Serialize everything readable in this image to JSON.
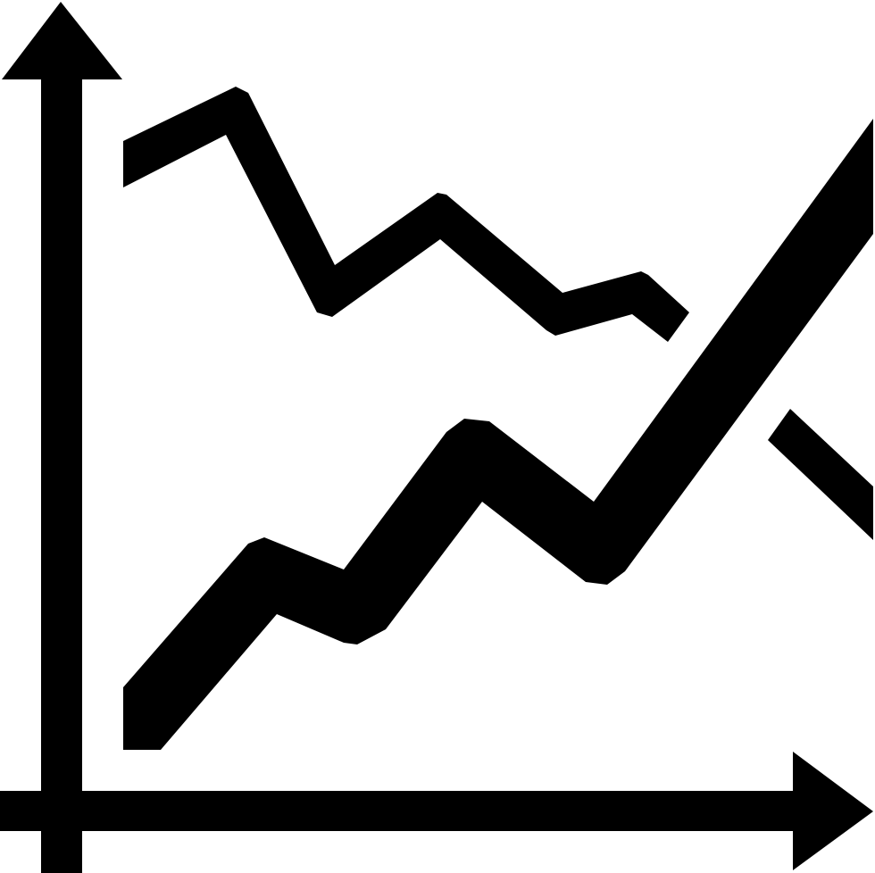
{
  "icon": {
    "name": "line-chart-icon",
    "foreground_color": "#000000",
    "background_color": "#ffffff"
  }
}
